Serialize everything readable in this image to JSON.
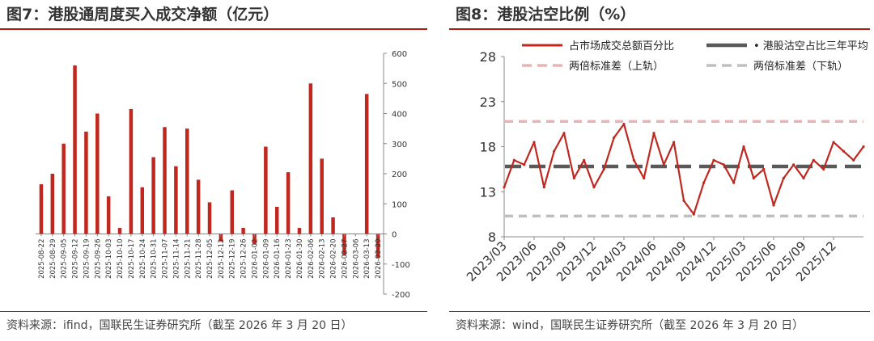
{
  "left_panel": {
    "title": "图7：港股通周度买入成交净额（亿元）",
    "source": "资料来源：ifind，国联民生证券研究所（截至 2026 年 3 月 20 日）"
  },
  "right_panel": {
    "title": "图8：港股沽空比例（%）",
    "source": "资料来源：wind，国联民生证券研究所（截至 2026 年 3 月 20 日）"
  },
  "colors": {
    "accent": "#b01c16",
    "bar": "#c0281f",
    "band_upper": "#e8b4b4",
    "band_lower": "#bfbfbf",
    "mean": "#595959"
  },
  "chart_data": [
    {
      "type": "bar",
      "title": "图7：港股通周度买入成交净额（亿元）",
      "categories": [
        "2025-08-22",
        "2025-08-29",
        "2025-09-05",
        "2025-09-12",
        "2025-09-19",
        "2025-09-26",
        "2025-10-03",
        "2025-10-10",
        "2025-10-17",
        "2025-10-24",
        "2025-10-31",
        "2025-11-07",
        "2025-11-14",
        "2025-11-21",
        "2025-11-28",
        "2025-12-05",
        "2025-12-12",
        "2025-12-19",
        "2025-12-26",
        "2026-01-02",
        "2026-01-09",
        "2026-01-16",
        "2026-01-23",
        "2026-01-30",
        "2026-02-06",
        "2026-02-13",
        "2026-02-20",
        "2026-02-27",
        "2026-03-06",
        "2026-03-13",
        "2026-03-20"
      ],
      "values": [
        165,
        200,
        300,
        560,
        340,
        400,
        125,
        20,
        415,
        155,
        255,
        355,
        225,
        350,
        180,
        105,
        -25,
        145,
        20,
        -35,
        290,
        90,
        205,
        20,
        500,
        250,
        55,
        -70,
        0,
        465,
        -80
      ],
      "ylim": [
        -200,
        600
      ],
      "yticks": [
        -200,
        -100,
        0,
        100,
        200,
        300,
        400,
        500,
        600
      ],
      "y_axis_side": "right",
      "grid": false
    },
    {
      "type": "line",
      "title": "图8：港股沽空比例（%）",
      "ylim": [
        8,
        28
      ],
      "yticks": [
        8,
        13,
        18,
        23,
        28
      ],
      "xticks": [
        "2023/03",
        "2023/06",
        "2023/09",
        "2023/12",
        "2024/03",
        "2024/06",
        "2024/09",
        "2024/12",
        "2025/03",
        "2025/06",
        "2025/09",
        "2025/12"
      ],
      "x_range": [
        "2023/03",
        "2026/03"
      ],
      "legend_placement": "top",
      "series": [
        {
          "name": "占市场成交总额百分比",
          "style": "solid",
          "x": [
            "2023/03",
            "2023/04",
            "2023/05",
            "2023/06",
            "2023/07",
            "2023/08",
            "2023/09",
            "2023/10",
            "2023/11",
            "2023/12",
            "2024/01",
            "2024/02",
            "2024/03",
            "2024/04",
            "2024/05",
            "2024/06",
            "2024/07",
            "2024/08",
            "2024/09",
            "2024/10",
            "2024/11",
            "2024/12",
            "2025/01",
            "2025/02",
            "2025/03",
            "2025/04",
            "2025/05",
            "2025/06",
            "2025/07",
            "2025/08",
            "2025/09",
            "2025/10",
            "2025/11",
            "2025/12",
            "2026/01",
            "2026/02",
            "2026/03"
          ],
          "values": [
            13.5,
            16.5,
            16.0,
            18.5,
            13.5,
            17.5,
            19.5,
            14.5,
            16.5,
            13.5,
            15.5,
            19.0,
            20.5,
            16.5,
            14.5,
            19.5,
            16.0,
            18.5,
            12.0,
            10.5,
            14.0,
            16.5,
            16.0,
            14.0,
            18.0,
            14.5,
            15.5,
            11.5,
            14.5,
            16.0,
            14.5,
            16.5,
            15.5,
            18.5,
            17.5,
            16.5,
            18.0
          ]
        },
        {
          "name": "港股沽空占比三年平均",
          "style": "dashed",
          "legend_marker": "•",
          "value": 15.8
        },
        {
          "name": "两倍标准差（上轨）",
          "style": "dashed",
          "value": 20.8
        },
        {
          "name": "两倍标准差（下轨）",
          "style": "dashed",
          "value": 10.3
        }
      ]
    }
  ]
}
